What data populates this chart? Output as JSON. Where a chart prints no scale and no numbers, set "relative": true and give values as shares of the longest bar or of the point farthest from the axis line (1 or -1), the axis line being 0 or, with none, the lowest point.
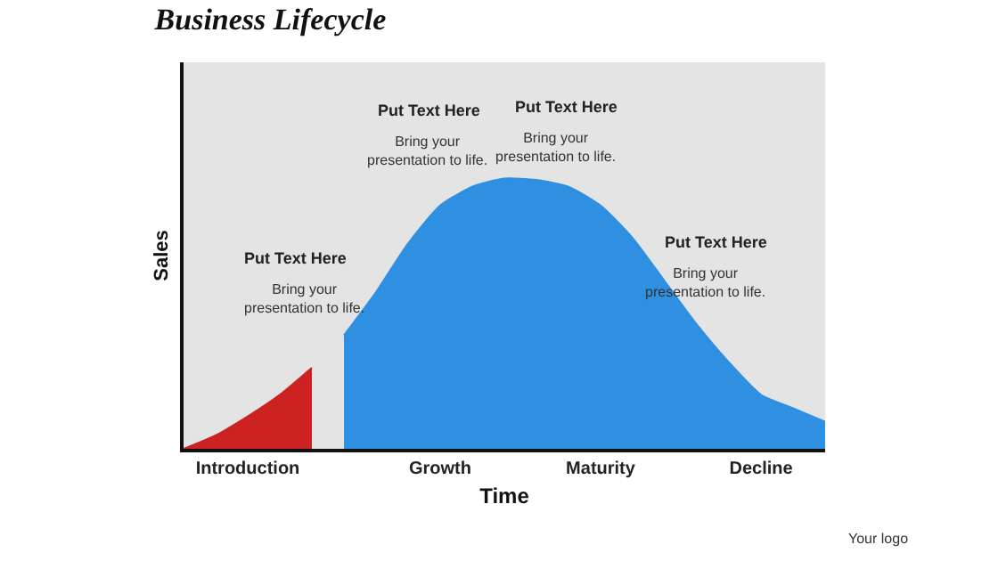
{
  "chart_data": {
    "type": "area",
    "title": "Business Lifecycle",
    "xlabel": "Time",
    "ylabel": "Sales",
    "relative": true,
    "categories": [
      null,
      null,
      "Introduction",
      null,
      null,
      null,
      null,
      null,
      "Growth",
      null,
      null,
      null,
      null,
      "Maturity",
      null,
      null,
      null,
      null,
      "Decline",
      null,
      null
    ],
    "series": [
      {
        "color": "#cc2222",
        "values": [
          0,
          0.05,
          0.12,
          0.2,
          0.3,
          null,
          null,
          null,
          null,
          null,
          null,
          null,
          null,
          null,
          null,
          null,
          null,
          null,
          null,
          null,
          null
        ]
      },
      {
        "color": "#2f90e2",
        "values": [
          null,
          null,
          null,
          null,
          null,
          0.42,
          0.58,
          0.76,
          0.9,
          0.97,
          1.0,
          0.995,
          0.97,
          0.9,
          0.78,
          0.62,
          0.46,
          0.32,
          0.2,
          0.15,
          0.1
        ]
      }
    ],
    "annotations": [
      "Put Text Here",
      "Bring your\npresentation to life.",
      "Put Text Here",
      "Bring your\npresentation to life.",
      "Put Text Here",
      "Bring your\npresentation to life.",
      "Put Text Here",
      "Bring your\npresentation to life.",
      "Your logo"
    ],
    "grid": false
  }
}
